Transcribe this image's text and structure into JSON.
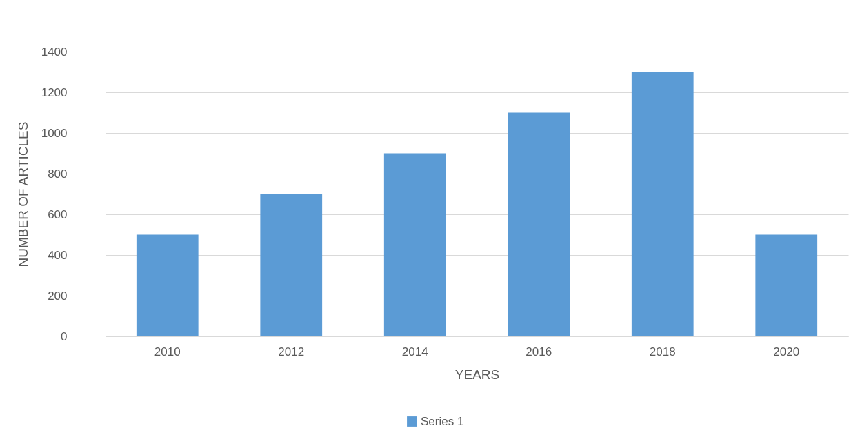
{
  "chart_data": {
    "type": "bar",
    "xlabel": "YEARS",
    "ylabel": "NUMBER OF ARTICLES",
    "categories": [
      "2010",
      "2012",
      "2014",
      "2016",
      "2018",
      "2020"
    ],
    "series": [
      {
        "name": "Series 1",
        "color": "#5b9bd5",
        "values": [
          500,
          700,
          900,
          1100,
          1300,
          500
        ]
      }
    ],
    "ylim": [
      0,
      1400
    ],
    "yticks": [
      0,
      200,
      400,
      600,
      800,
      1000,
      1200,
      1400
    ],
    "grid": "y",
    "legend": "bottom"
  }
}
